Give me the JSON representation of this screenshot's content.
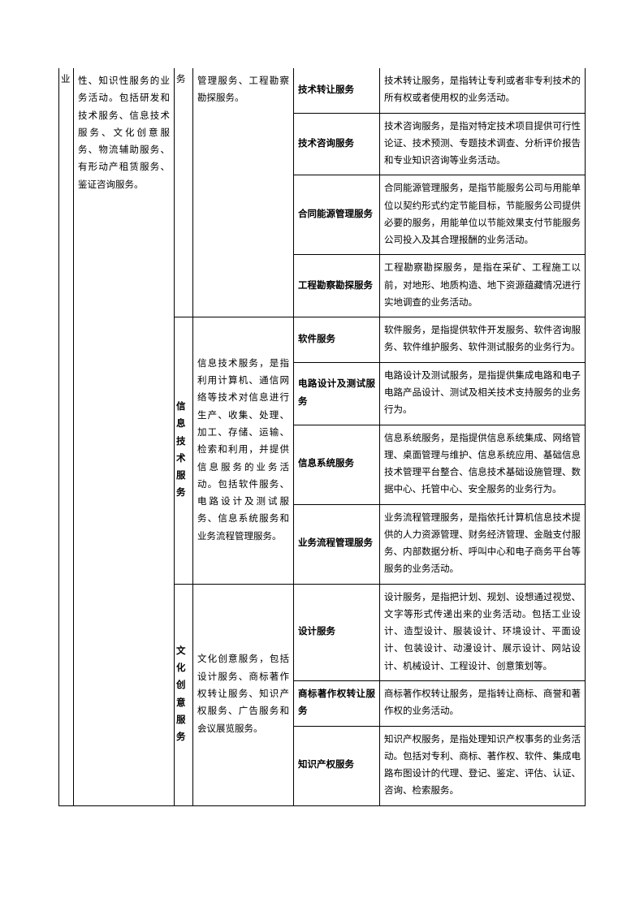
{
  "col1_header": "业",
  "col2_desc": "性、知识性服务的业务活动。包括研发和技术服务、信息技术服务、文化创意服务、物流辅助服务、有形动产租赁服务、鉴证咨询服务。",
  "col3_header1": "务",
  "col4_desc1": "管理服务、工程勘察勘探服务。",
  "section1": {
    "rows": [
      {
        "label": "技术转让服务",
        "desc": "技术转让服务，是指转让专利或者非专利技术的所有权或者使用权的业务活动。"
      },
      {
        "label": "技术咨询服务",
        "desc": "技术咨询服务，是指对特定技术项目提供可行性论证、技术预测、专题技术调查、分析评价报告和专业知识咨询等业务活动。"
      },
      {
        "label": "合同能源管理服务",
        "desc": "合同能源管理服务，是指节能服务公司与用能单位以契约形式约定节能目标，节能服务公司提供必要的服务，用能单位以节能效果支付节能服务公司投入及其合理报酬的业务活动。"
      },
      {
        "label": "工程勘察勘探服务",
        "desc": "工程勘察勘探服务，是指在采矿、工程施工以前，对地形、地质构造、地下资源蕴藏情况进行实地调查的业务活动。"
      }
    ]
  },
  "section2": {
    "category": "信息技术服务",
    "middleDesc": "信息技术服务，是指利用计算机、通信网络等技术对信息进行生产、收集、处理、加工、存储、运输、检索和利用，并提供信息服务的业务活动。包括软件服务、电路设计及测试服务、信息系统服务和业务流程管理服务。",
    "rows": [
      {
        "label": "软件服务",
        "desc": "软件服务，是指提供软件开发服务、软件咨询服务、软件维护服务、软件测试服务的业务行为。"
      },
      {
        "label": "电路设计及测试服务",
        "desc": "电路设计及测试服务，是指提供集成电路和电子电路产品设计、测试及相关技术支持服务的业务行为。"
      },
      {
        "label": "信息系统服务",
        "desc": "信息系统服务，是指提供信息系统集成、网络管理、桌面管理与维护、信息系统应用、基础信息技术管理平台整合、信息技术基础设施管理、数据中心、托管中心、安全服务的业务行为。"
      },
      {
        "label": "业务流程管理服务",
        "desc": "业务流程管理服务，是指依托计算机信息技术提供的人力资源管理、财务经济管理、金融支付服务、内部数据分析、呼叫中心和电子商务平台等服务的业务活动。"
      }
    ]
  },
  "section3": {
    "category": "文化创意服务",
    "middleDesc": "文化创意服务，包括设计服务、商标著作权转让服务、知识产权服务、广告服务和会议展览服务。",
    "rows": [
      {
        "label": "设计服务",
        "desc": "设计服务，是指把计划、规划、设想通过视觉、文字等形式传递出来的业务活动。包括工业设计、造型设计、服装设计、环境设计、平面设计、包装设计、动漫设计、展示设计、网站设计、机械设计、工程设计、创意策划等。"
      },
      {
        "label": "商标著作权转让服务",
        "desc": "商标著作权转让服务，是指转让商标、商誉和著作权的业务活动。"
      },
      {
        "label": "知识产权服务",
        "desc": "知识产权服务，是指处理知识产权事务的业务活动。包括对专利、商标、著作权、软件、集成电路布图设计的代理、登记、鉴定、评估、认证、咨询、检索服务。"
      }
    ]
  }
}
